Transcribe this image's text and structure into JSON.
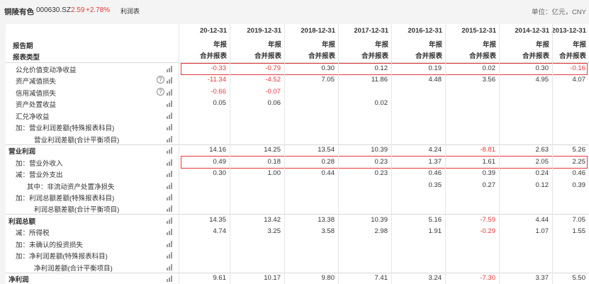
{
  "topbar": {
    "stock_name": "铜陵有色",
    "stock_code": "000630.SZ",
    "price": "2.59",
    "change_pct": "+2.78%",
    "tab": "利润表",
    "unit": "单位：亿元，CNY"
  },
  "header": {
    "label_period": "报告期",
    "label_type": "报表类型",
    "columns": [
      {
        "date": "20-12-31",
        "period": "年报",
        "type": "合并报表"
      },
      {
        "date": "2019-12-31",
        "period": "年报",
        "type": "合并报表"
      },
      {
        "date": "2018-12-31",
        "period": "年报",
        "type": "合并报表"
      },
      {
        "date": "2017-12-31",
        "period": "年报",
        "type": "合并报表"
      },
      {
        "date": "2016-12-31",
        "period": "年报",
        "type": "合并报表"
      },
      {
        "date": "2015-12-31",
        "period": "年报",
        "type": "合并报表"
      },
      {
        "date": "2014-12-31",
        "period": "年报",
        "type": "合并报表"
      },
      {
        "date": "2013-12-31",
        "period": "年报",
        "type": "合并报表"
      }
    ]
  },
  "rows": [
    {
      "label": "公允价值变动净收益",
      "values": [
        "-0.33",
        "-0.79",
        "0.30",
        "0.12",
        "0.19",
        "0.02",
        "0.30",
        "-0.16"
      ]
    },
    {
      "label": "资产减值损失",
      "values": [
        "-11.34",
        "-4.52",
        "7.05",
        "11.86",
        "4.48",
        "3.56",
        "4.95",
        "4.07"
      ]
    },
    {
      "label": "信用减值损失",
      "values": [
        "-0.66",
        "-0.07",
        "",
        "",
        "",
        "",
        "",
        ""
      ]
    },
    {
      "label": "资产处置收益",
      "values": [
        "0.05",
        "0.06",
        "",
        "0.02",
        "",
        "",
        "",
        ""
      ]
    },
    {
      "label": "汇兑净收益",
      "values": [
        "",
        "",
        "",
        "",
        "",
        "",
        "",
        ""
      ]
    },
    {
      "label": "加：营业利润差额(特殊报表科目)",
      "values": [
        "",
        "",
        "",
        "",
        "",
        "",
        "",
        ""
      ]
    },
    {
      "label": "营业利润差额(合计平衡项目)",
      "values": [
        "",
        "",
        "",
        "",
        "",
        "",
        "",
        ""
      ]
    },
    {
      "label": "营业利润",
      "values": [
        "14.16",
        "14.25",
        "13.54",
        "10.39",
        "4.24",
        "-8.81",
        "2.63",
        "5.26"
      ]
    },
    {
      "label": "加：营业外收入",
      "values": [
        "0.49",
        "0.18",
        "0.28",
        "0.23",
        "1.37",
        "1.61",
        "2.05",
        "2.25"
      ]
    },
    {
      "label": "减：营业外支出",
      "values": [
        "0.30",
        "1.00",
        "0.44",
        "0.23",
        "0.46",
        "0.39",
        "0.24",
        "0.46"
      ]
    },
    {
      "label": "其中：非流动资产处置净损失",
      "values": [
        "",
        "",
        "",
        "",
        "0.35",
        "0.27",
        "0.12",
        "0.39"
      ]
    },
    {
      "label": "加：利润总额差额(特殊报表科目)",
      "values": [
        "",
        "",
        "",
        "",
        "",
        "",
        "",
        ""
      ]
    },
    {
      "label": "利润总额差额(合计平衡项目)",
      "values": [
        "",
        "",
        "",
        "",
        "",
        "",
        "",
        ""
      ]
    },
    {
      "label": "利润总额",
      "values": [
        "14.35",
        "13.42",
        "13.38",
        "10.39",
        "5.16",
        "-7.59",
        "4.44",
        "7.05"
      ]
    },
    {
      "label": "减：所得税",
      "values": [
        "4.74",
        "3.25",
        "3.58",
        "2.98",
        "1.91",
        "-0.29",
        "1.07",
        "1.55"
      ]
    },
    {
      "label": "加：未确认的投资损失",
      "values": [
        "",
        "",
        "",
        "",
        "",
        "",
        "",
        ""
      ]
    },
    {
      "label": "加：净利润差额(特殊报表科目)",
      "values": [
        "",
        "",
        "",
        "",
        "",
        "",
        "",
        ""
      ]
    },
    {
      "label": "净利润差额(合计平衡项目)",
      "values": [
        "",
        "",
        "",
        "",
        "",
        "",
        "",
        ""
      ]
    },
    {
      "label": "净利润",
      "values": [
        "9.61",
        "10.17",
        "9.80",
        "7.41",
        "3.24",
        "-7.30",
        "3.37",
        "5.50"
      ]
    }
  ],
  "help_symbol": "?",
  "colors": {
    "negative": "#e4393c",
    "highlight_box": "#e4393c"
  }
}
